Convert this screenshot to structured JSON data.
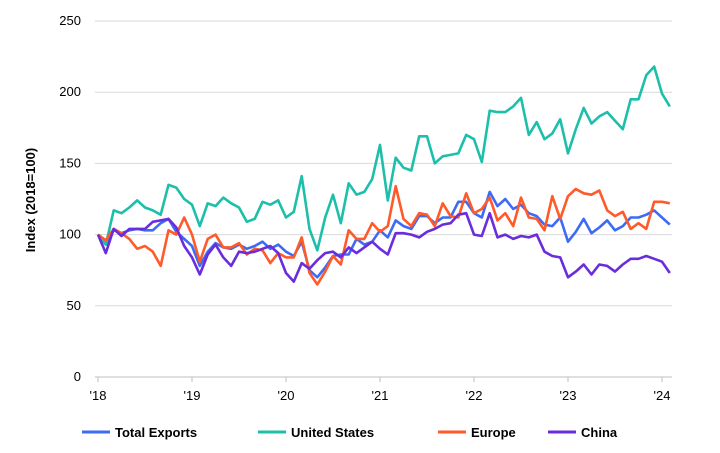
{
  "chart_data": {
    "type": "line",
    "title": "",
    "xlabel": "",
    "ylabel": "Index (2018=100)",
    "ylim": [
      0,
      250
    ],
    "yticks": [
      0,
      50,
      100,
      150,
      200,
      250
    ],
    "xtick_labels": [
      "'18",
      "'19",
      "'20",
      "'21",
      "'22",
      "'23",
      "'24"
    ],
    "x_start": "Jan 2018",
    "frequency": "monthly",
    "grid": true,
    "legend_position": "bottom",
    "series": [
      {
        "name": "Total Exports",
        "color": "#3D6BF5",
        "values": [
          100,
          93,
          103,
          101,
          103,
          104,
          103,
          103,
          108,
          111,
          102,
          97,
          92,
          78,
          88,
          94,
          91,
          90,
          93,
          90,
          92,
          95,
          90,
          93,
          88,
          85,
          95,
          75,
          70,
          77,
          85,
          86,
          86,
          97,
          93,
          95,
          103,
          98,
          110,
          106,
          104,
          113,
          113,
          108,
          112,
          112,
          123,
          123,
          115,
          112,
          130,
          120,
          125,
          118,
          121,
          115,
          113,
          107,
          106,
          112,
          95,
          102,
          111,
          101,
          105,
          110,
          103,
          106,
          112,
          112,
          114,
          117,
          112,
          107
        ]
      },
      {
        "name": "United States",
        "color": "#1DBFAA",
        "values": [
          100,
          93,
          117,
          115,
          119,
          124,
          119,
          117,
          114,
          135,
          133,
          125,
          121,
          106,
          122,
          120,
          126,
          122,
          119,
          109,
          111,
          123,
          121,
          124,
          112,
          116,
          141,
          104,
          89,
          112,
          128,
          108,
          136,
          128,
          130,
          139,
          163,
          124,
          154,
          147,
          145,
          169,
          169,
          150,
          155,
          156,
          157,
          170,
          167,
          151,
          187,
          186,
          186,
          190,
          196,
          170,
          179,
          167,
          171,
          181,
          157,
          174,
          189,
          178,
          183,
          186,
          180,
          174,
          195,
          195,
          212,
          218,
          199,
          190
        ]
      },
      {
        "name": "Europe",
        "color": "#FF5A2A",
        "values": [
          100,
          96,
          104,
          101,
          97,
          90,
          92,
          88,
          78,
          103,
          100,
          112,
          100,
          81,
          97,
          100,
          91,
          91,
          94,
          86,
          90,
          89,
          80,
          87,
          84,
          84,
          98,
          73,
          65,
          74,
          85,
          79,
          103,
          97,
          97,
          108,
          102,
          106,
          134,
          111,
          106,
          115,
          114,
          106,
          122,
          113,
          112,
          129,
          115,
          118,
          126,
          110,
          115,
          106,
          126,
          112,
          111,
          103,
          127,
          111,
          127,
          132,
          129,
          128,
          131,
          117,
          113,
          116,
          104,
          108,
          104,
          123,
          123,
          122
        ]
      },
      {
        "name": "China",
        "color": "#6A2DDB",
        "values": [
          100,
          87,
          104,
          99,
          104,
          104,
          104,
          109,
          110,
          111,
          105,
          92,
          84,
          72,
          86,
          93,
          84,
          78,
          88,
          87,
          88,
          90,
          92,
          87,
          73,
          67,
          80,
          76,
          82,
          87,
          88,
          84,
          91,
          87,
          91,
          95,
          90,
          86,
          101,
          101,
          100,
          98,
          102,
          104,
          107,
          108,
          114,
          115,
          100,
          99,
          115,
          98,
          100,
          97,
          99,
          98,
          100,
          88,
          85,
          84,
          70,
          74,
          79,
          72,
          79,
          78,
          74,
          79,
          83,
          83,
          85,
          83,
          81,
          73
        ]
      }
    ]
  }
}
